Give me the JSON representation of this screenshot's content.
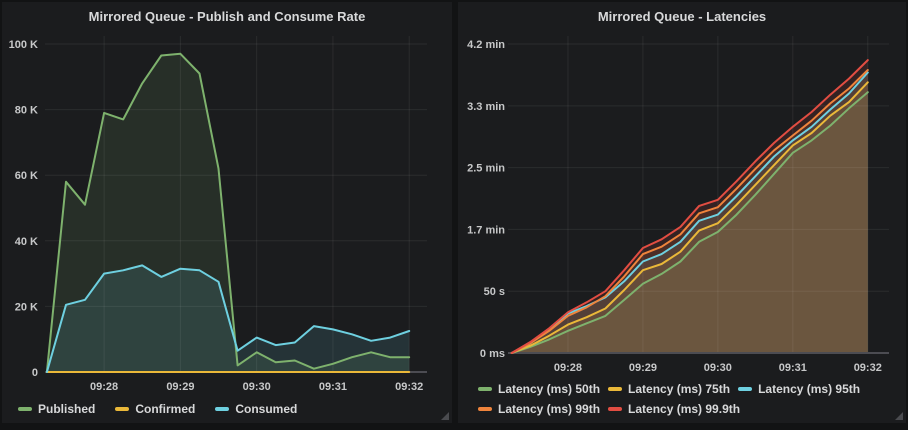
{
  "colors": {
    "page_bg": "#121314",
    "panel_bg": "#1b1c1e",
    "title_text": "#d8d9da",
    "tick_label": "#c7c8c9",
    "legend_label": "#d8d9da",
    "grid_line": "rgba(255,255,255,0.07)",
    "axis_line": "#4c4c52",
    "resize_handle": "#4a4b4f"
  },
  "panels": [
    {
      "title": "Mirrored Queue - Publish and Consume Rate",
      "chart_data": {
        "type": "area",
        "x_unit": "time (seconds after 09:27)",
        "y_unit": "messages per second",
        "x_ticks": [
          {
            "label": "09:28",
            "t": 60
          },
          {
            "label": "09:29",
            "t": 120
          },
          {
            "label": "09:30",
            "t": 180
          },
          {
            "label": "09:31",
            "t": 240
          },
          {
            "label": "09:32",
            "t": 300
          }
        ],
        "y_ticks": [
          {
            "label": "0",
            "v": 0
          },
          {
            "label": "20 K",
            "v": 20000
          },
          {
            "label": "40 K",
            "v": 40000
          },
          {
            "label": "60 K",
            "v": 60000
          },
          {
            "label": "80 K",
            "v": 80000
          },
          {
            "label": "100 K",
            "v": 100000
          }
        ],
        "series": [
          {
            "name": "Published",
            "color": "#7eb26d",
            "points": [
              [
                15,
                0
              ],
              [
                30,
                58000
              ],
              [
                45,
                51000
              ],
              [
                60,
                79000
              ],
              [
                75,
                77000
              ],
              [
                90,
                88000
              ],
              [
                105,
                96500
              ],
              [
                120,
                97000
              ],
              [
                135,
                91000
              ],
              [
                150,
                62000
              ],
              [
                165,
                2000
              ],
              [
                180,
                6000
              ],
              [
                195,
                3000
              ],
              [
                210,
                3500
              ],
              [
                225,
                1000
              ],
              [
                240,
                2500
              ],
              [
                255,
                4500
              ],
              [
                270,
                6000
              ],
              [
                285,
                4500
              ],
              [
                300,
                4500
              ]
            ]
          },
          {
            "name": "Confirmed",
            "color": "#eab839",
            "points": [
              [
                15,
                0
              ],
              [
                300,
                0
              ]
            ]
          },
          {
            "name": "Consumed",
            "color": "#6ed0e0",
            "points": [
              [
                15,
                0
              ],
              [
                30,
                20500
              ],
              [
                45,
                22000
              ],
              [
                60,
                30000
              ],
              [
                75,
                31000
              ],
              [
                90,
                32500
              ],
              [
                105,
                29000
              ],
              [
                120,
                31500
              ],
              [
                135,
                31000
              ],
              [
                150,
                27500
              ],
              [
                165,
                6500
              ],
              [
                180,
                10500
              ],
              [
                195,
                8200
              ],
              [
                210,
                9000
              ],
              [
                225,
                14000
              ],
              [
                240,
                13000
              ],
              [
                255,
                11500
              ],
              [
                270,
                9500
              ],
              [
                285,
                10500
              ],
              [
                300,
                12500
              ]
            ]
          }
        ],
        "legend_rows": [
          [
            0,
            1,
            2
          ]
        ],
        "legend_position": "bottom-left",
        "grid": true
      }
    },
    {
      "title": "Mirrored Queue - Latencies",
      "chart_data": {
        "type": "area",
        "x_unit": "time (seconds after 09:27)",
        "y_unit": "latency (seconds)",
        "x_ticks": [
          {
            "label": "09:28",
            "t": 60
          },
          {
            "label": "09:29",
            "t": 120
          },
          {
            "label": "09:30",
            "t": 180
          },
          {
            "label": "09:31",
            "t": 240
          },
          {
            "label": "09:32",
            "t": 300
          }
        ],
        "y_ticks": [
          {
            "label": "0 ms",
            "v": 0
          },
          {
            "label": "50 s",
            "v": 50
          },
          {
            "label": "1.7 min",
            "v": 100
          },
          {
            "label": "2.5 min",
            "v": 150
          },
          {
            "label": "3.3 min",
            "v": 200
          },
          {
            "label": "4.2 min",
            "v": 250
          }
        ],
        "series": [
          {
            "name": "Latency (ms) 50th",
            "color": "#7eb26d",
            "points": [
              [
                15,
                0
              ],
              [
                30,
                5
              ],
              [
                45,
                11
              ],
              [
                60,
                18
              ],
              [
                75,
                24
              ],
              [
                90,
                30
              ],
              [
                105,
                43
              ],
              [
                120,
                56
              ],
              [
                135,
                64
              ],
              [
                150,
                74
              ],
              [
                165,
                90
              ],
              [
                180,
                98
              ],
              [
                195,
                112
              ],
              [
                210,
                128
              ],
              [
                225,
                145
              ],
              [
                240,
                162
              ],
              [
                255,
                172
              ],
              [
                270,
                184
              ],
              [
                285,
                198
              ],
              [
                300,
                211
              ]
            ]
          },
          {
            "name": "Latency (ms) 75th",
            "color": "#eab839",
            "points": [
              [
                15,
                0
              ],
              [
                30,
                6
              ],
              [
                45,
                14
              ],
              [
                60,
                23
              ],
              [
                75,
                29
              ],
              [
                90,
                36
              ],
              [
                105,
                51
              ],
              [
                120,
                67
              ],
              [
                135,
                72
              ],
              [
                150,
                82
              ],
              [
                165,
                99
              ],
              [
                180,
                105
              ],
              [
                195,
                120
              ],
              [
                210,
                136
              ],
              [
                225,
                152
              ],
              [
                240,
                168
              ],
              [
                255,
                178
              ],
              [
                270,
                192
              ],
              [
                285,
                203
              ],
              [
                300,
                219
              ]
            ]
          },
          {
            "name": "Latency (ms) 95th",
            "color": "#6ed0e0",
            "points": [
              [
                15,
                0
              ],
              [
                30,
                8
              ],
              [
                45,
                19
              ],
              [
                60,
                32
              ],
              [
                75,
                38
              ],
              [
                90,
                45
              ],
              [
                105,
                58
              ],
              [
                120,
                74
              ],
              [
                135,
                80
              ],
              [
                150,
                90
              ],
              [
                165,
                107
              ],
              [
                180,
                112
              ],
              [
                195,
                127
              ],
              [
                210,
                143
              ],
              [
                225,
                159
              ],
              [
                240,
                172
              ],
              [
                255,
                183
              ],
              [
                270,
                197
              ],
              [
                285,
                210
              ],
              [
                300,
                227
              ]
            ]
          },
          {
            "name": "Latency (ms) 99th",
            "color": "#ef843c",
            "points": [
              [
                15,
                0
              ],
              [
                30,
                8
              ],
              [
                45,
                18
              ],
              [
                60,
                30
              ],
              [
                75,
                37
              ],
              [
                90,
                46
              ],
              [
                105,
                62
              ],
              [
                120,
                80
              ],
              [
                135,
                86
              ],
              [
                150,
                96
              ],
              [
                165,
                113
              ],
              [
                180,
                118
              ],
              [
                195,
                133
              ],
              [
                210,
                149
              ],
              [
                225,
                164
              ],
              [
                240,
                176
              ],
              [
                255,
                188
              ],
              [
                270,
                202
              ],
              [
                285,
                214
              ],
              [
                300,
                229
              ]
            ]
          },
          {
            "name": "Latency (ms) 99.9th",
            "color": "#e24d42",
            "points": [
              [
                15,
                0
              ],
              [
                30,
                9
              ],
              [
                45,
                20
              ],
              [
                60,
                33
              ],
              [
                75,
                41
              ],
              [
                90,
                50
              ],
              [
                105,
                67
              ],
              [
                120,
                85
              ],
              [
                135,
                92
              ],
              [
                150,
                102
              ],
              [
                165,
                119
              ],
              [
                180,
                124
              ],
              [
                195,
                139
              ],
              [
                210,
                155
              ],
              [
                225,
                170
              ],
              [
                240,
                183
              ],
              [
                255,
                195
              ],
              [
                270,
                209
              ],
              [
                285,
                222
              ],
              [
                300,
                237
              ]
            ]
          }
        ],
        "legend_rows": [
          [
            0,
            1,
            2
          ],
          [
            3,
            4
          ]
        ],
        "legend_position": "bottom-left",
        "grid": true
      }
    }
  ]
}
